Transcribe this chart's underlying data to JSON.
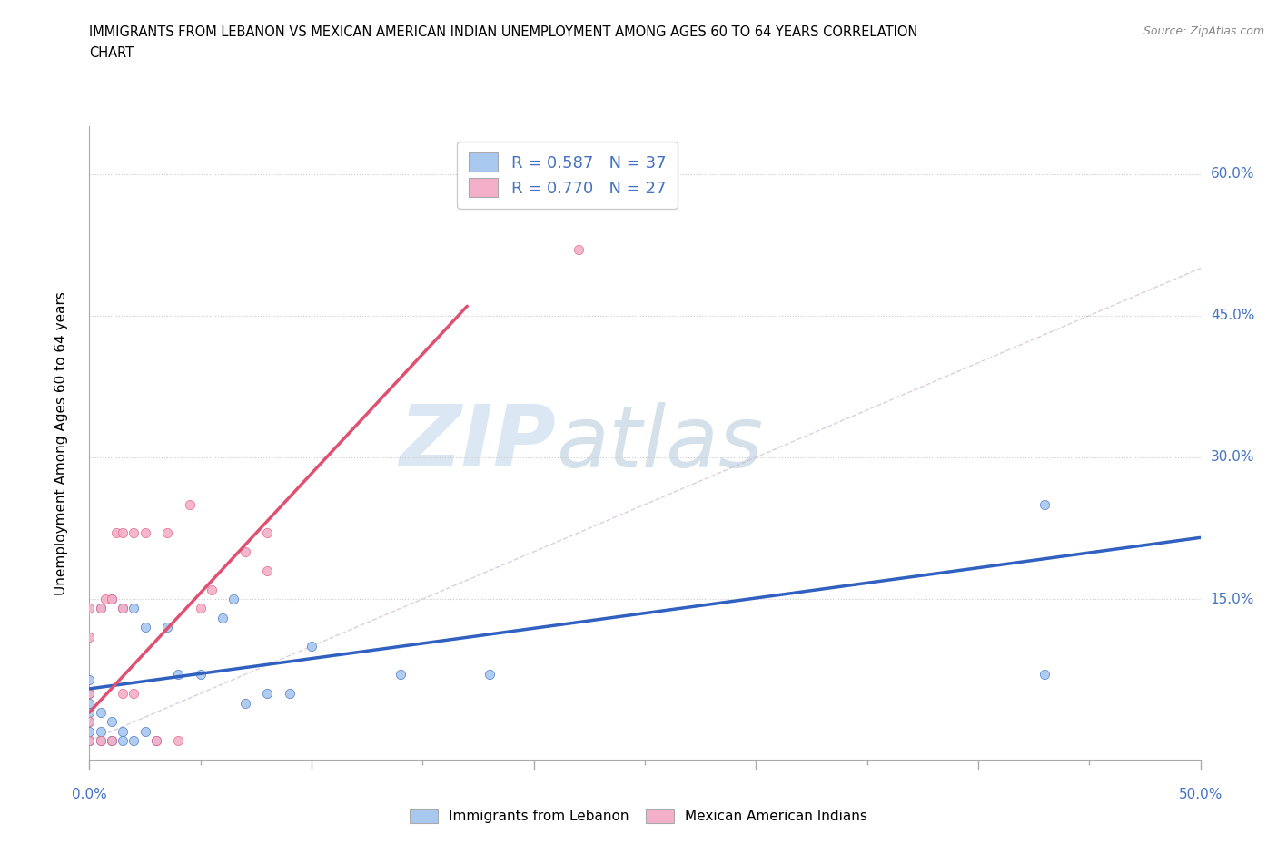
{
  "title_line1": "IMMIGRANTS FROM LEBANON VS MEXICAN AMERICAN INDIAN UNEMPLOYMENT AMONG AGES 60 TO 64 YEARS CORRELATION",
  "title_line2": "CHART",
  "source": "Source: ZipAtlas.com",
  "ylabel": "Unemployment Among Ages 60 to 64 years",
  "xlim": [
    0.0,
    0.5
  ],
  "ylim": [
    -0.02,
    0.65
  ],
  "ytick_labels": [
    "15.0%",
    "30.0%",
    "45.0%",
    "60.0%"
  ],
  "ytick_values": [
    0.15,
    0.3,
    0.45,
    0.6
  ],
  "xtick_major_values": [
    0.0,
    0.1,
    0.2,
    0.3,
    0.4,
    0.5
  ],
  "xtick_minor_values": [
    0.05,
    0.15,
    0.25,
    0.35,
    0.45
  ],
  "color_blue": "#a8c8f0",
  "color_pink": "#f4b0c8",
  "color_blue_dark": "#4472c4",
  "color_pink_dark": "#e06080",
  "color_line_blue": "#3060c0",
  "color_line_pink": "#e05070",
  "watermark_zip": "ZIP",
  "watermark_atlas": "atlas",
  "lebanon_x": [
    0.0,
    0.0,
    0.0,
    0.0,
    0.0,
    0.0,
    0.0,
    0.0,
    0.005,
    0.005,
    0.005,
    0.005,
    0.01,
    0.01,
    0.01,
    0.01,
    0.015,
    0.015,
    0.015,
    0.02,
    0.02,
    0.025,
    0.025,
    0.03,
    0.035,
    0.04,
    0.05,
    0.06,
    0.065,
    0.07,
    0.08,
    0.09,
    0.1,
    0.14,
    0.18,
    0.43,
    0.43
  ],
  "lebanon_y": [
    0.0,
    0.0,
    0.01,
    0.02,
    0.03,
    0.04,
    0.05,
    0.065,
    0.0,
    0.01,
    0.03,
    0.14,
    0.0,
    0.0,
    0.02,
    0.15,
    0.0,
    0.01,
    0.14,
    0.0,
    0.14,
    0.01,
    0.12,
    0.0,
    0.12,
    0.07,
    0.07,
    0.13,
    0.15,
    0.04,
    0.05,
    0.05,
    0.1,
    0.07,
    0.07,
    0.07,
    0.25
  ],
  "mexican_x": [
    0.0,
    0.0,
    0.0,
    0.0,
    0.0,
    0.005,
    0.005,
    0.007,
    0.01,
    0.01,
    0.012,
    0.015,
    0.015,
    0.015,
    0.02,
    0.02,
    0.025,
    0.03,
    0.035,
    0.04,
    0.045,
    0.05,
    0.055,
    0.07,
    0.08,
    0.08,
    0.22
  ],
  "mexican_y": [
    0.0,
    0.02,
    0.05,
    0.11,
    0.14,
    0.0,
    0.14,
    0.15,
    0.0,
    0.15,
    0.22,
    0.05,
    0.14,
    0.22,
    0.05,
    0.22,
    0.22,
    0.0,
    0.22,
    0.0,
    0.25,
    0.14,
    0.16,
    0.2,
    0.18,
    0.22,
    0.52
  ],
  "lebanon_line_x": [
    0.0,
    0.5
  ],
  "lebanon_line_y": [
    0.055,
    0.215
  ],
  "mexican_line_x": [
    0.0,
    0.17
  ],
  "mexican_line_y": [
    0.03,
    0.46
  ],
  "ref_line_x": [
    0.0,
    0.6
  ],
  "ref_line_y": [
    0.0,
    0.6
  ]
}
